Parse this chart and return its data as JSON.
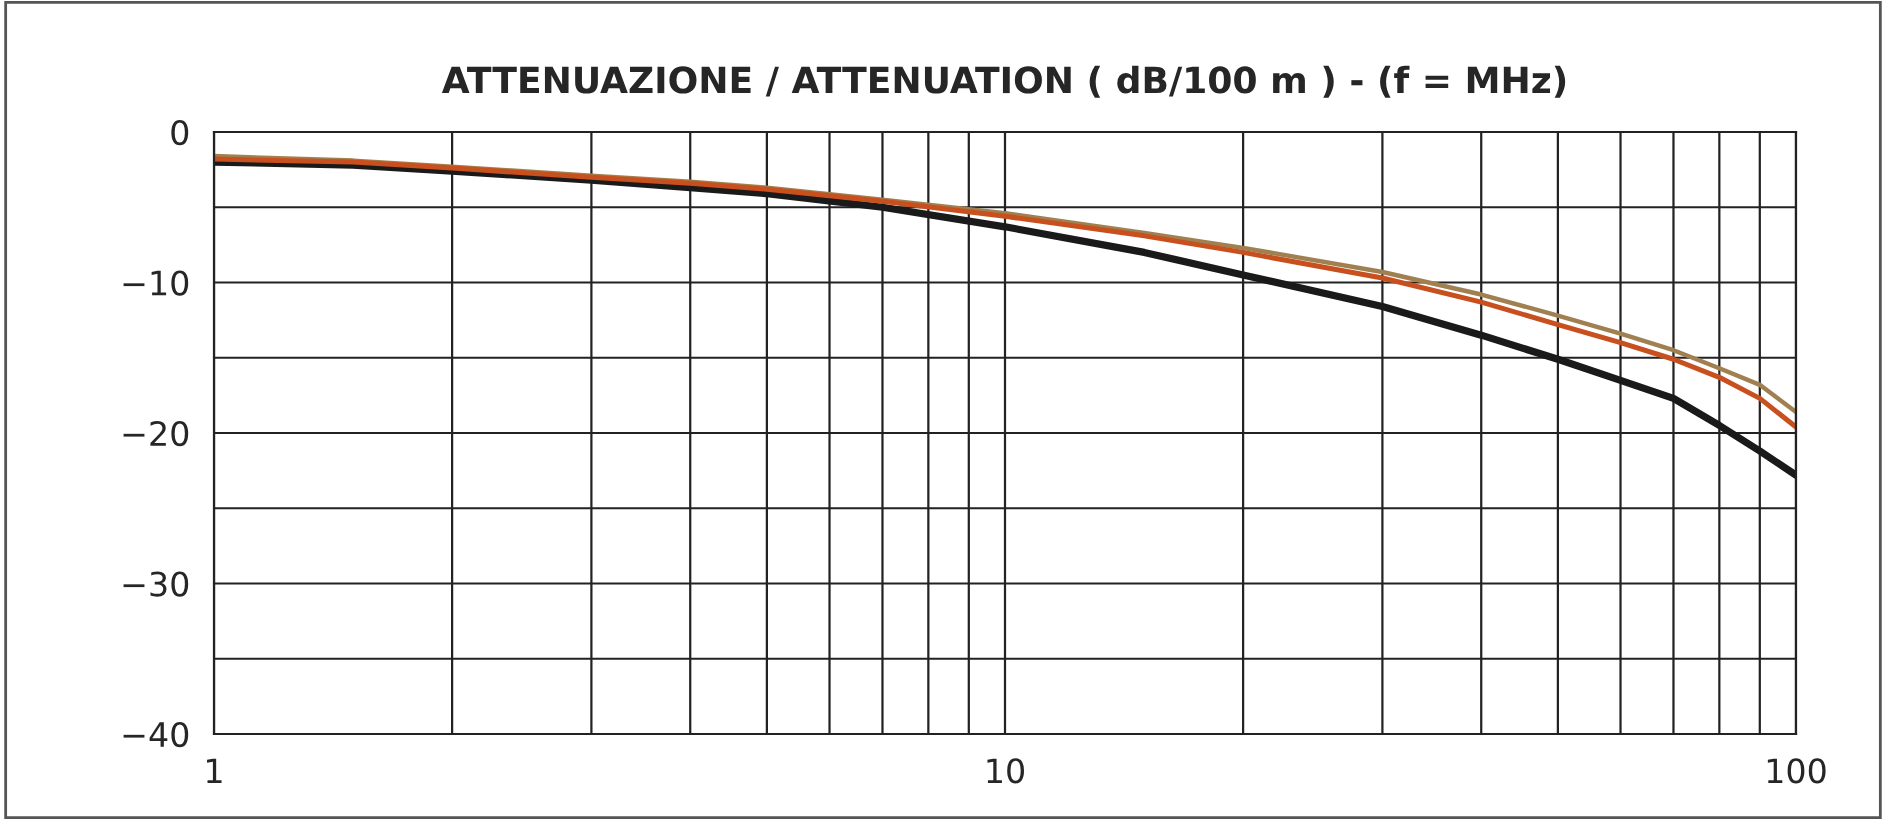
{
  "chart_data": {
    "type": "line",
    "title": "ATTENUAZIONE / ATTENUATION ( dB/100 m ) - (f = MHz)",
    "log": "x",
    "grid": true,
    "line_style": "solid",
    "marker": "none",
    "xlim": [
      1,
      100
    ],
    "xticks": [
      1,
      {
        "value": 2,
        "label": null
      },
      {
        "value": 3,
        "label": null
      },
      {
        "value": 4,
        "label": null
      },
      {
        "value": 5,
        "label": null
      },
      {
        "value": 6,
        "label": null
      },
      {
        "value": 7,
        "label": null
      },
      {
        "value": 8,
        "label": null
      },
      {
        "value": 9,
        "label": null
      },
      10,
      {
        "value": 20,
        "label": null
      },
      {
        "value": 30,
        "label": null
      },
      {
        "value": 40,
        "label": null
      },
      {
        "value": 50,
        "label": null
      },
      {
        "value": 60,
        "label": null
      },
      {
        "value": 70,
        "label": null
      },
      {
        "value": 80,
        "label": null
      },
      {
        "value": 90,
        "label": null
      },
      100
    ],
    "ylim": [
      -40,
      0
    ],
    "yticks": [
      {
        "value": -40,
        "label": "−40"
      },
      {
        "value": -35,
        "label": null
      },
      {
        "value": -30,
        "label": "−30"
      },
      {
        "value": -25,
        "label": null
      },
      {
        "value": -20,
        "label": "−20"
      },
      {
        "value": -15,
        "label": null
      },
      {
        "value": -10,
        "label": "−10"
      },
      {
        "value": -5,
        "label": null
      },
      0
    ],
    "x": [
      1,
      1.5,
      2,
      3,
      4,
      5,
      7,
      10,
      15,
      20,
      30,
      40,
      50,
      60,
      70,
      80,
      90,
      100
    ],
    "series": [
      {
        "color": "#1a1a1a",
        "values": [
          -2.0,
          -2.2,
          -2.6,
          -3.2,
          -3.7,
          -4.1,
          -5.0,
          -6.3,
          -8.0,
          -9.5,
          -11.6,
          -13.5,
          -15.1,
          -16.5,
          -17.7,
          -19.5,
          -21.2,
          -22.8
        ]
      },
      {
        "color": "#a08050",
        "values": [
          -1.6,
          -1.9,
          -2.3,
          -2.9,
          -3.3,
          -3.7,
          -4.5,
          -5.4,
          -6.7,
          -7.7,
          -9.3,
          -10.8,
          -12.2,
          -13.4,
          -14.5,
          -15.7,
          -16.8,
          -18.6
        ]
      },
      {
        "color": "#c8501e",
        "values": [
          -1.8,
          -2.0,
          -2.4,
          -3.0,
          -3.4,
          -3.8,
          -4.6,
          -5.6,
          -6.9,
          -8.0,
          -9.7,
          -11.3,
          -12.8,
          -14.0,
          -15.1,
          -16.3,
          -17.7,
          -19.6
        ]
      }
    ]
  }
}
